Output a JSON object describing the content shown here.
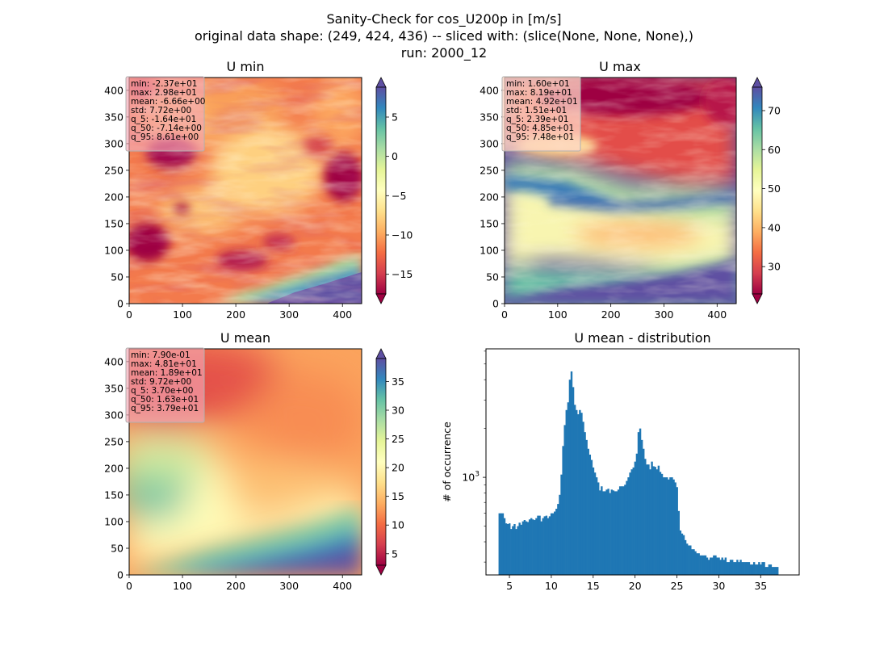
{
  "figure": {
    "suptitle_lines": [
      "Sanity-Check for cos_U200p in [m/s]",
      "original data shape: (249, 424, 436) -- sliced with: (slice(None, None, None),)",
      "run: 2000_12"
    ]
  },
  "chart_data": [
    {
      "type": "heatmap",
      "title": "U min",
      "colormap": "Spectral",
      "xlim": [
        0,
        436
      ],
      "ylim": [
        0,
        424
      ],
      "xticks": [
        0,
        100,
        200,
        300,
        400
      ],
      "yticks": [
        0,
        50,
        100,
        150,
        200,
        250,
        300,
        350,
        400
      ],
      "colorbar": {
        "range": [
          -17.5,
          8.8
        ],
        "ticks": [
          -15,
          -10,
          -5,
          0,
          5
        ],
        "tick_labels": [
          "−15",
          "−10",
          "−5",
          "0",
          "5"
        ],
        "extend": "both"
      },
      "stats": [
        "min: -2.37e+01",
        "max: 2.98e+01",
        "mean: -6.66e+00",
        "std: 7.72e+00",
        "q_5: -1.64e+01",
        "q_50: -7.14e+00",
        "q_95: 8.61e+00"
      ]
    },
    {
      "type": "heatmap",
      "title": "U max",
      "colormap": "Spectral",
      "xlim": [
        0,
        436
      ],
      "ylim": [
        0,
        424
      ],
      "xticks": [
        0,
        100,
        200,
        300,
        400
      ],
      "yticks": [
        0,
        50,
        100,
        150,
        200,
        250,
        300,
        350,
        400
      ],
      "colorbar": {
        "range": [
          23,
          76
        ],
        "ticks": [
          30,
          40,
          50,
          60,
          70
        ],
        "tick_labels": [
          "30",
          "40",
          "50",
          "60",
          "70"
        ],
        "extend": "both"
      },
      "stats": [
        "min: 1.60e+01",
        "max: 8.19e+01",
        "mean: 4.92e+01",
        "std: 1.51e+01",
        "q_5: 2.39e+01",
        "q_50: 4.85e+01",
        "q_95: 7.48e+01"
      ]
    },
    {
      "type": "heatmap",
      "title": "U mean",
      "colormap": "Spectral",
      "xlim": [
        0,
        436
      ],
      "ylim": [
        0,
        424
      ],
      "xticks": [
        0,
        100,
        200,
        300,
        400
      ],
      "yticks": [
        0,
        50,
        100,
        150,
        200,
        250,
        300,
        350,
        400
      ],
      "colorbar": {
        "range": [
          3,
          39
        ],
        "ticks": [
          5,
          10,
          15,
          20,
          25,
          30,
          35
        ],
        "tick_labels": [
          "5",
          "10",
          "15",
          "20",
          "25",
          "30",
          "35"
        ],
        "extend": "both"
      },
      "stats": [
        "min: 7.90e-01",
        "max: 4.81e+01",
        "mean: 1.89e+01",
        "std: 9.72e+00",
        "q_5: 3.70e+00",
        "q_50: 1.63e+01",
        "q_95: 3.79e+01"
      ]
    },
    {
      "type": "bar",
      "title": "U mean - distribution",
      "ylabel": "# of occurrence",
      "yscale": "log",
      "bar_color": "#1f77b4",
      "xlim": [
        2.2,
        39.6
      ],
      "ylim": [
        250,
        6200
      ],
      "xticks": [
        5,
        10,
        15,
        20,
        25,
        30,
        35
      ],
      "yticks": [
        1000
      ],
      "ytick_labels": [
        "10"
      ],
      "ytick_exponents": [
        "3"
      ],
      "bins": {
        "start": 3.7,
        "width": 0.2
      },
      "values": [
        600,
        600,
        600,
        560,
        520,
        515,
        520,
        480,
        500,
        515,
        480,
        500,
        525,
        510,
        535,
        545,
        535,
        530,
        550,
        560,
        550,
        545,
        560,
        580,
        580,
        535,
        560,
        575,
        580,
        560,
        575,
        600,
        600,
        615,
        640,
        685,
        780,
        1040,
        1560,
        2100,
        2600,
        2900,
        4000,
        4500,
        3600,
        2800,
        2600,
        2450,
        2600,
        2500,
        2200,
        1900,
        1700,
        1500,
        1380,
        1280,
        1150,
        1070,
        1000,
        930,
        830,
        880,
        820,
        820,
        840,
        850,
        800,
        840,
        830,
        820,
        820,
        840,
        880,
        880,
        880,
        900,
        950,
        1000,
        1070,
        1120,
        1150,
        1250,
        1400,
        1900,
        2000,
        1700,
        1500,
        1300,
        1200,
        1200,
        1120,
        1250,
        1170,
        1160,
        1120,
        1180,
        1080,
        1050,
        1000,
        1000,
        1000,
        970,
        1000,
        1000,
        970,
        930,
        870,
        620,
        470,
        450,
        440,
        410,
        390,
        380,
        380,
        360,
        360,
        350,
        340,
        340,
        330,
        330,
        330,
        330,
        320,
        310,
        320,
        320,
        330,
        330,
        320,
        320,
        310,
        320,
        310,
        320,
        300,
        300,
        310,
        310,
        300,
        300,
        310,
        300,
        310,
        300,
        300,
        300,
        300,
        300,
        290,
        290,
        300,
        290,
        290,
        300,
        290,
        300,
        300,
        280,
        280,
        290,
        290,
        280,
        280,
        280,
        280
      ]
    }
  ]
}
